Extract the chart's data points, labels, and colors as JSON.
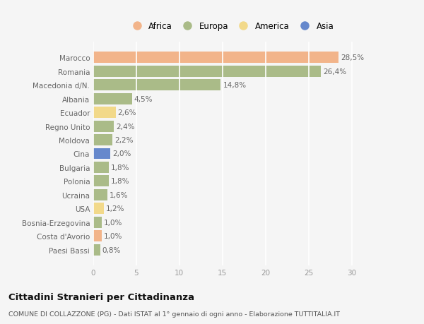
{
  "categories": [
    "Marocco",
    "Romania",
    "Macedonia d/N.",
    "Albania",
    "Ecuador",
    "Regno Unito",
    "Moldova",
    "Cina",
    "Bulgaria",
    "Polonia",
    "Ucraina",
    "USA",
    "Bosnia-Erzegovina",
    "Costa d'Avorio",
    "Paesi Bassi"
  ],
  "values": [
    28.5,
    26.4,
    14.8,
    4.5,
    2.6,
    2.4,
    2.2,
    2.0,
    1.8,
    1.8,
    1.6,
    1.2,
    1.0,
    1.0,
    0.8
  ],
  "labels": [
    "28,5%",
    "26,4%",
    "14,8%",
    "4,5%",
    "2,6%",
    "2,4%",
    "2,2%",
    "2,0%",
    "1,8%",
    "1,8%",
    "1,6%",
    "1,2%",
    "1,0%",
    "1,0%",
    "0,8%"
  ],
  "continents": [
    "Africa",
    "Europa",
    "Europa",
    "Europa",
    "America",
    "Europa",
    "Europa",
    "Asia",
    "Europa",
    "Europa",
    "Europa",
    "America",
    "Europa",
    "Africa",
    "Europa"
  ],
  "colors": {
    "Africa": "#F2B48A",
    "Europa": "#AABB88",
    "America": "#F2D98A",
    "Asia": "#6688CC"
  },
  "legend_order": [
    "Africa",
    "Europa",
    "America",
    "Asia"
  ],
  "title": "Cittadini Stranieri per Cittadinanza",
  "subtitle": "COMUNE DI COLLAZZONE (PG) - Dati ISTAT al 1° gennaio di ogni anno - Elaborazione TUTTITALIA.IT",
  "xlim": [
    0,
    32
  ],
  "xticks": [
    0,
    5,
    10,
    15,
    20,
    25,
    30
  ],
  "background_color": "#f5f5f5",
  "grid_color": "#ffffff",
  "bar_height": 0.82
}
